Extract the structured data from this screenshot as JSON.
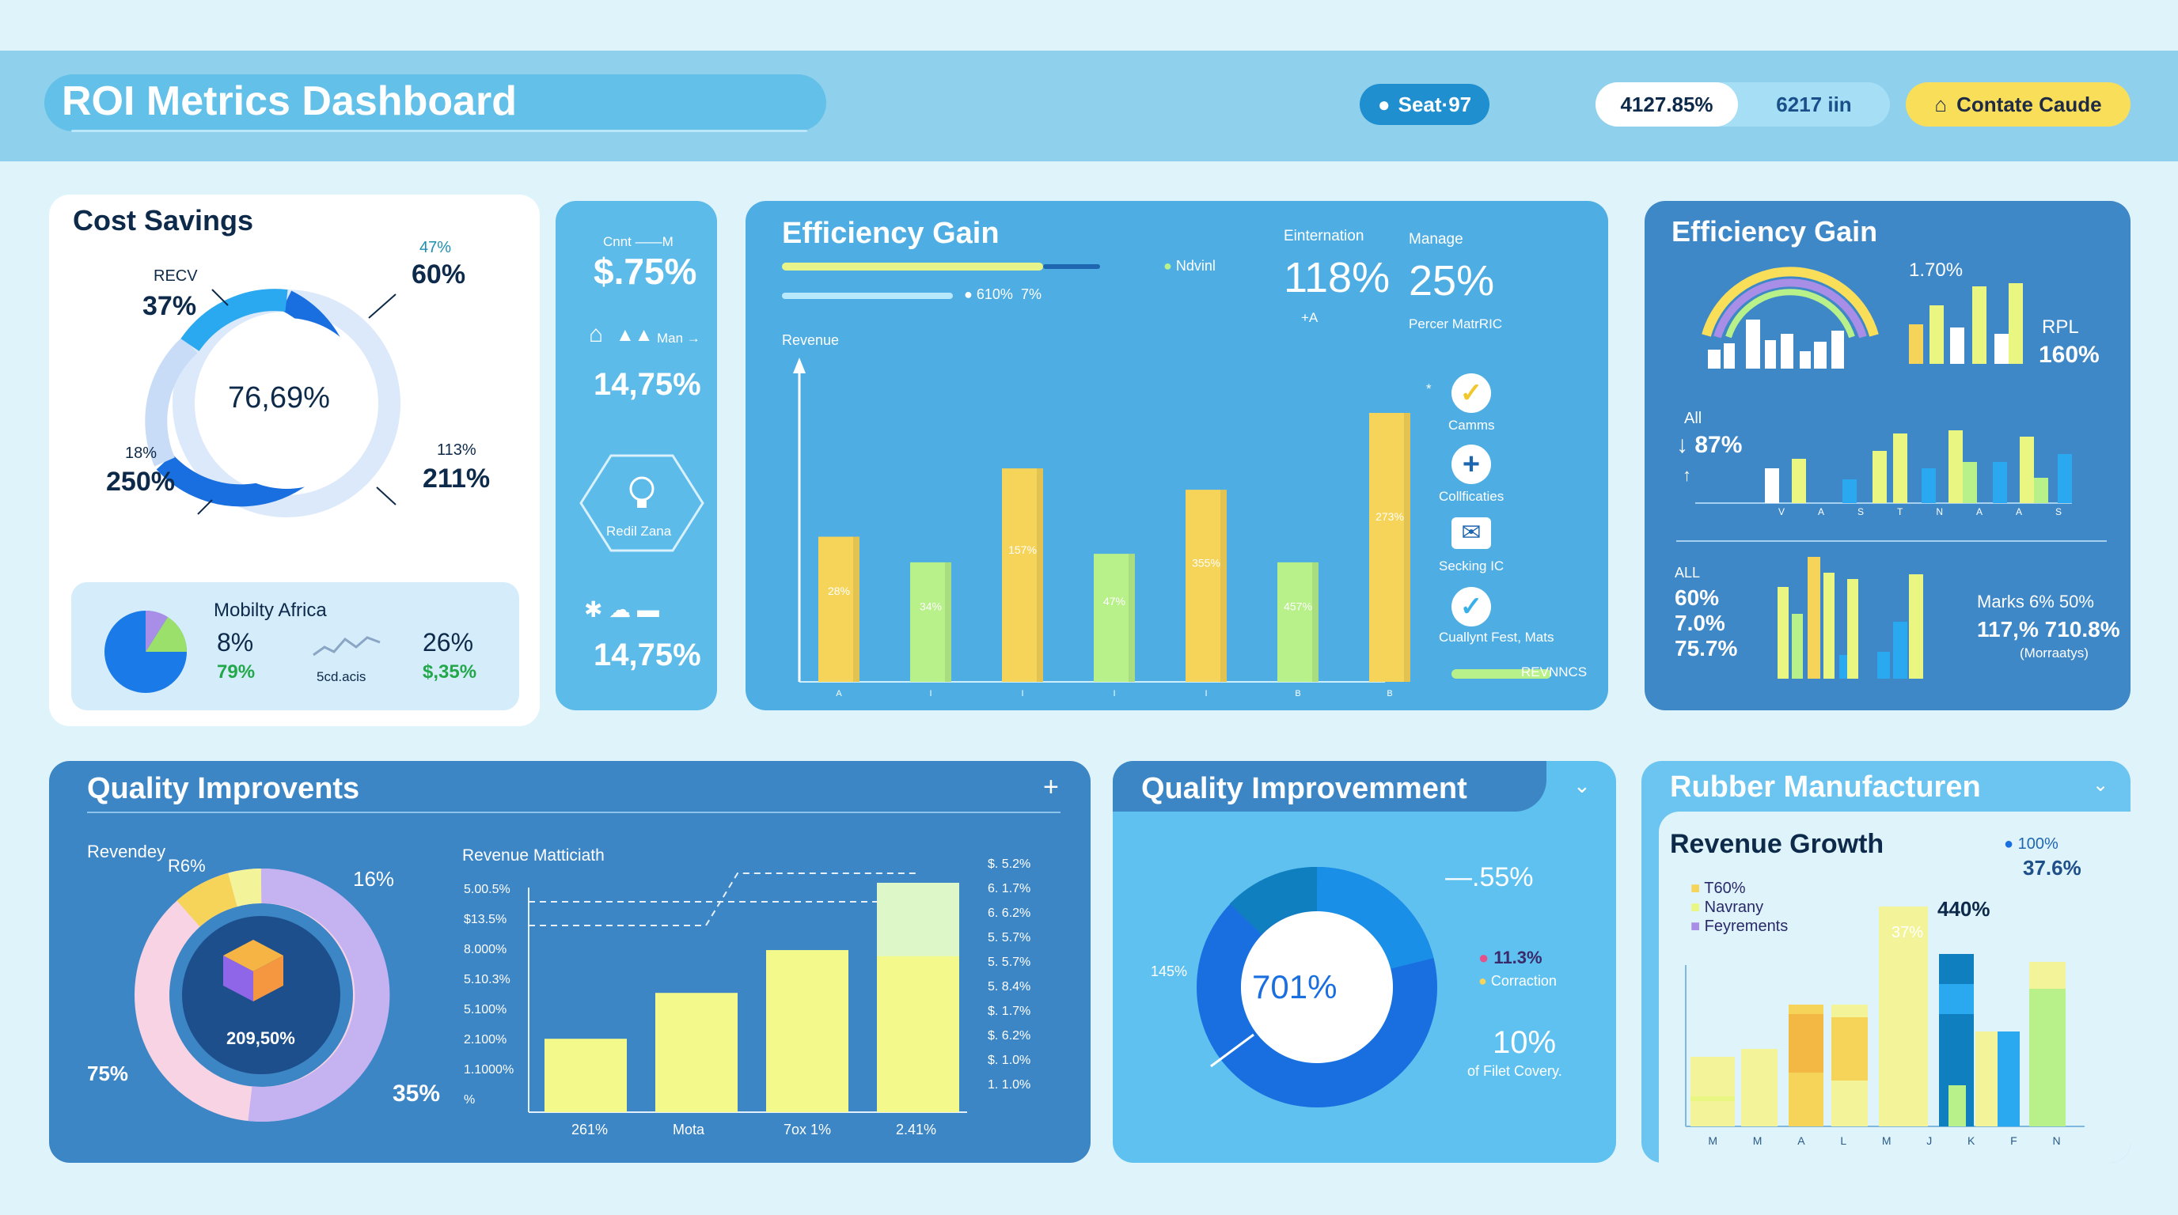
{
  "header": {
    "title": "ROI Metrics Dashboard",
    "seat_label": "Seat·97",
    "stat_1": "4127.85%",
    "stat_2": "6217 iin",
    "contact_label": "Contate Caude"
  },
  "cost_savings": {
    "title": "Cost Savings",
    "center": "76,69%",
    "labels": [
      {
        "small": "RECV",
        "big": "37%"
      },
      {
        "small": "47%",
        "big": "60%"
      },
      {
        "small": "18%",
        "big": "250%"
      },
      {
        "small": "113%",
        "big": "211%"
      }
    ],
    "sub": {
      "title": "Mobilty Africa",
      "v1": "8%",
      "v1_sub": "79%",
      "spark_label": "5cd.acis",
      "v2": "26%",
      "v2_sub": "$,35%"
    }
  },
  "side_stats": {
    "top_small": "Cnnt ——M",
    "v1": "$.75%",
    "mid_small": "Man →",
    "v2": "14,75%",
    "hex_label": "Redil Zana",
    "v3": "14,75%"
  },
  "efficiency_main": {
    "title": "Efficiency Gain",
    "legend_1": "Ndvinl",
    "legend_2": "610%",
    "legend_3": "7%",
    "axis_label": "Revenue",
    "kpi_1_label": "Einternation",
    "kpi_1": "118%",
    "kpi_1_sub": "+A",
    "kpi_2_label": "Manage",
    "kpi_2": "25%",
    "kpi_2_sub": "Percer MatrRIC",
    "side_items": [
      "Camms",
      "Collficaties",
      "Secking IC",
      "Cuallynt Fest, Mats"
    ],
    "footer_legend": "REVNNCS",
    "bar_labels": [
      "28%",
      "34%",
      "157%",
      "47%",
      "355%",
      "457%",
      "273%"
    ],
    "x_ticks": [
      "A",
      "I",
      "I",
      "I",
      "I",
      "B",
      "B"
    ]
  },
  "efficiency_right": {
    "title": "Efficiency Gain",
    "top_pct": "1.70%",
    "rpl_label": "RPL",
    "rpl_value": "160%",
    "all_label": "All",
    "all_value": "↓ 87%",
    "x_ticks": [
      "V",
      "A",
      "S",
      "T",
      "N",
      "A",
      "A",
      "S"
    ],
    "all2_label": "ALL",
    "left_values": [
      "60%",
      "7.0%",
      "75.7%"
    ],
    "right_line1": "Marks 6% 50%",
    "right_line2": "117,% 710.8%",
    "right_line3": "(Morraatys)"
  },
  "quality_left": {
    "title": "Quality Improvents",
    "plus": "+",
    "donut_top_left": "Revendey",
    "donut_r6": "R6%",
    "donut_16": "16%",
    "donut_center": "209,50%",
    "donut_75": "75%",
    "donut_35": "35%",
    "bar_title": "Revenue Matticiath",
    "y_ticks": [
      "5.00.5%",
      "$13.5%",
      "8.000%",
      "5.10.3%",
      "5.100%",
      "2.100%",
      "1.1000%",
      "%"
    ],
    "right_ticks": [
      "$. 5.2%",
      "6. 1.7%",
      "6. 6.2%",
      "5. 5.7%",
      "5. 5.7%",
      "5. 8.4%",
      "$. 1.7%",
      "$. 6.2%",
      "$. 1.0%",
      "1. 1.0%"
    ],
    "x_labels": [
      "261%",
      "Mota",
      "7ox 1%",
      "2.41%"
    ]
  },
  "quality_mid": {
    "title": "Quality Improvemment",
    "top_pct": "—.55%",
    "left_pct": "145%",
    "center": "701%",
    "legend_1": "11.3%",
    "legend_2": "Corraction",
    "bottom_pct": "10%",
    "bottom_sub": "of Filet Covery."
  },
  "rubber": {
    "title": "Rubber Manufacturen",
    "sub_title": "Revenue Growth",
    "legend_right_1": "100%",
    "legend_right_2": "37.6%",
    "legend": [
      "T60%",
      "Navrany",
      "Feyrements"
    ],
    "v440": "440%",
    "bar_tag": "37%",
    "x_ticks": [
      "M",
      "M",
      "A",
      "L",
      "M",
      "J",
      "K",
      "F",
      "N"
    ]
  },
  "chart_data": [
    {
      "type": "bar",
      "title": "Efficiency Gain",
      "ylabel": "Revenue",
      "categories": [
        "A",
        "I",
        "I",
        "I",
        "I",
        "B",
        "B"
      ],
      "values": [
        28,
        34,
        157,
        47,
        355,
        457,
        273
      ],
      "heights": [
        34,
        28,
        50,
        30,
        45,
        28,
        63
      ]
    },
    {
      "type": "bar",
      "title": "Revenue Matticiath",
      "categories": [
        "261%",
        "Mota",
        "7ox 1%",
        "2.41%"
      ],
      "values": [
        24,
        39,
        53,
        75
      ]
    }
  ]
}
